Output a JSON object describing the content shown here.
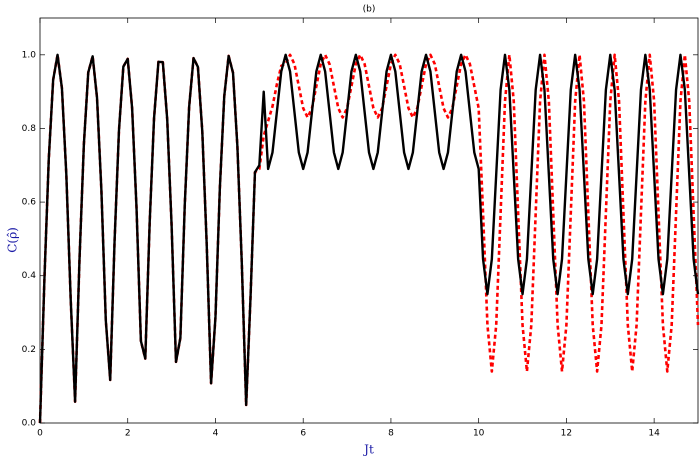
{
  "chart_data": {
    "type": "line",
    "title": "(b)",
    "x_label": "Jt",
    "y_label": "C(ρ̂)",
    "xlim": [
      0,
      15
    ],
    "xticks": [
      0,
      2,
      4,
      6,
      8,
      10,
      12,
      14
    ],
    "ylim": [
      0,
      1.1
    ],
    "yticks": [
      {
        "value": 0,
        "label": "0.0"
      },
      0.2,
      0.4,
      0.6,
      0.8,
      {
        "value": 1,
        "label": "1.0"
      }
    ],
    "x": [
      0,
      0.1,
      0.2,
      0.3,
      0.4,
      0.5,
      0.6,
      0.7,
      0.8,
      0.9,
      1,
      1.1,
      1.2,
      1.3,
      1.4,
      1.5,
      1.6,
      1.7,
      1.8,
      1.9,
      2,
      2.1,
      2.2,
      2.3,
      2.4,
      2.5,
      2.6,
      2.7,
      2.8,
      2.9,
      3,
      3.1,
      3.2,
      3.3,
      3.4,
      3.5,
      3.6,
      3.7,
      3.8,
      3.9,
      4,
      4.1,
      4.2,
      4.3,
      4.4,
      4.5,
      4.6,
      4.7,
      4.8,
      4.9,
      5,
      5.1,
      5.2,
      5.3,
      5.4,
      5.5,
      5.6,
      5.7,
      5.8,
      5.9,
      6,
      6.1,
      6.2,
      6.3,
      6.4,
      6.5,
      6.6,
      6.7,
      6.8,
      6.9,
      7,
      7.1,
      7.2,
      7.3,
      7.4,
      7.5,
      7.6,
      7.7,
      7.8,
      7.9,
      8,
      8.1,
      8.2,
      8.3,
      8.4,
      8.5,
      8.6,
      8.7,
      8.8,
      8.9,
      9,
      9.1,
      9.2,
      9.3,
      9.4,
      9.5,
      9.6,
      9.7,
      9.8,
      9.9,
      10,
      10.1,
      10.2,
      10.3,
      10.4,
      10.5,
      10.6,
      10.7,
      10.8,
      10.9,
      11,
      11.1,
      11.2,
      11.3,
      11.4,
      11.5,
      11.6,
      11.7,
      11.8,
      11.9,
      12,
      12.1,
      12.2,
      12.3,
      12.4,
      12.5,
      12.6,
      12.7,
      12.8,
      12.9,
      13,
      13.1,
      13.2,
      13.3,
      13.4,
      13.5,
      13.6,
      13.7,
      13.8,
      13.9,
      14,
      14.1,
      14.2,
      14.3,
      14.4,
      14.5,
      14.6,
      14.7,
      14.8,
      14.9,
      15
    ],
    "series": [
      {
        "color": "#ff0000",
        "dash": "dashed",
        "values": [
          0,
          0.389,
          0.717,
          0.932,
          1.0,
          0.909,
          0.675,
          0.335,
          0.058,
          0.443,
          0.757,
          0.952,
          0.996,
          0.883,
          0.631,
          0.279,
          0.117,
          0.494,
          0.794,
          0.968,
          0.989,
          0.855,
          0.585,
          0.223,
          0.175,
          0.544,
          0.828,
          0.981,
          0.98,
          0.825,
          0.537,
          0.166,
          0.231,
          0.592,
          0.859,
          0.991,
          0.967,
          0.791,
          0.487,
          0.108,
          0.288,
          0.638,
          0.887,
          0.997,
          0.951,
          0.751,
          0.435,
          0.049,
          0.344,
          0.681,
          0.69,
          0.78,
          0.82,
          0.86,
          0.92,
          0.97,
          0.975,
          1.0,
          0.975,
          0.915,
          0.855,
          0.83,
          0.855,
          0.915,
          0.975,
          1.0,
          0.975,
          0.915,
          0.855,
          0.83,
          0.855,
          0.915,
          0.975,
          1.0,
          0.975,
          0.915,
          0.855,
          0.83,
          0.855,
          0.915,
          0.975,
          1.0,
          0.975,
          0.915,
          0.855,
          0.83,
          0.855,
          0.915,
          0.975,
          1.0,
          0.975,
          0.915,
          0.855,
          0.83,
          0.855,
          0.915,
          0.975,
          1.0,
          0.975,
          0.915,
          0.855,
          0.57,
          0.266,
          0.14,
          0.266,
          0.57,
          0.874,
          1.0,
          0.874,
          0.57,
          0.266,
          0.14,
          0.266,
          0.57,
          0.874,
          1.0,
          0.874,
          0.57,
          0.266,
          0.14,
          0.266,
          0.57,
          0.874,
          1.0,
          0.874,
          0.57,
          0.266,
          0.14,
          0.266,
          0.57,
          0.874,
          1.0,
          0.874,
          0.57,
          0.266,
          0.14,
          0.266,
          0.57,
          0.874,
          1.0,
          0.874,
          0.57,
          0.266,
          0.14,
          0.266,
          0.57,
          0.874,
          1.0,
          0.874,
          0.57,
          0.266
        ]
      },
      {
        "color": "#000000",
        "dash": "solid",
        "values": [
          0,
          0.389,
          0.717,
          0.932,
          1.0,
          0.909,
          0.675,
          0.335,
          0.058,
          0.443,
          0.757,
          0.952,
          0.996,
          0.883,
          0.631,
          0.279,
          0.117,
          0.494,
          0.794,
          0.968,
          0.989,
          0.855,
          0.585,
          0.223,
          0.175,
          0.544,
          0.828,
          0.981,
          0.98,
          0.825,
          0.537,
          0.166,
          0.231,
          0.592,
          0.859,
          0.991,
          0.967,
          0.791,
          0.487,
          0.108,
          0.288,
          0.638,
          0.887,
          0.997,
          0.951,
          0.751,
          0.435,
          0.049,
          0.344,
          0.681,
          0.7,
          0.9,
          0.69,
          0.735,
          0.845,
          0.955,
          1.0,
          0.955,
          0.845,
          0.735,
          0.69,
          0.735,
          0.845,
          0.955,
          1.0,
          0.955,
          0.845,
          0.735,
          0.69,
          0.735,
          0.845,
          0.955,
          1.0,
          0.955,
          0.845,
          0.735,
          0.69,
          0.735,
          0.845,
          0.955,
          1.0,
          0.955,
          0.845,
          0.735,
          0.69,
          0.735,
          0.845,
          0.955,
          1.0,
          0.955,
          0.845,
          0.735,
          0.69,
          0.735,
          0.845,
          0.955,
          1.0,
          0.955,
          0.845,
          0.735,
          0.69,
          0.445,
          0.35,
          0.445,
          0.675,
          0.905,
          1.0,
          0.905,
          0.675,
          0.445,
          0.35,
          0.445,
          0.675,
          0.905,
          1.0,
          0.905,
          0.675,
          0.445,
          0.35,
          0.445,
          0.675,
          0.905,
          1.0,
          0.905,
          0.675,
          0.445,
          0.35,
          0.445,
          0.675,
          0.905,
          1.0,
          0.905,
          0.675,
          0.445,
          0.35,
          0.445,
          0.675,
          0.905,
          1.0,
          0.905,
          0.675,
          0.445,
          0.35,
          0.445,
          0.675,
          0.905,
          1.0,
          0.905,
          0.675,
          0.445,
          0.35
        ]
      }
    ]
  }
}
